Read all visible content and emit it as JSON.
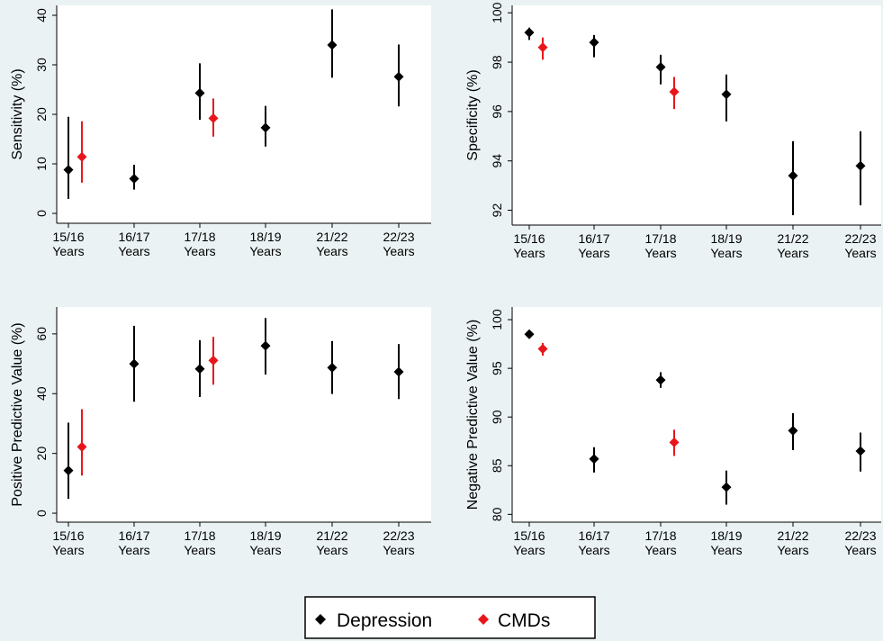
{
  "legend": {
    "items": [
      {
        "label": "Depression",
        "color": "#000000",
        "marker": "diamond"
      },
      {
        "label": "CMDs",
        "color": "#e8161b",
        "marker": "diamond"
      }
    ]
  },
  "chart_data": [
    {
      "type": "scatter",
      "error_bars": true,
      "ylabel": "Sensitivity (%)",
      "ylim": [
        -2,
        42
      ],
      "yticks": [
        0,
        10,
        20,
        30,
        40
      ],
      "categories": [
        "15/16",
        "16/17",
        "17/18",
        "18/19",
        "21/22",
        "22/23"
      ],
      "category_sublabel": "Years",
      "series": [
        {
          "name": "Depression",
          "points": [
            {
              "cat": 0,
              "y": 8.8,
              "lo": 2.9,
              "hi": 19.5
            },
            {
              "cat": 1,
              "y": 7.0,
              "lo": 4.8,
              "hi": 9.8
            },
            {
              "cat": 2,
              "y": 24.3,
              "lo": 18.9,
              "hi": 30.3
            },
            {
              "cat": 3,
              "y": 17.3,
              "lo": 13.5,
              "hi": 21.7
            },
            {
              "cat": 4,
              "y": 34.0,
              "lo": 27.4,
              "hi": 41.2
            },
            {
              "cat": 5,
              "y": 27.6,
              "lo": 21.6,
              "hi": 34.1
            }
          ]
        },
        {
          "name": "CMDs",
          "points": [
            {
              "cat": 0,
              "y": 11.4,
              "lo": 6.2,
              "hi": 18.6
            },
            {
              "cat": 2,
              "y": 19.2,
              "lo": 15.5,
              "hi": 23.2
            }
          ]
        }
      ]
    },
    {
      "type": "scatter",
      "error_bars": true,
      "ylabel": "Specificity (%)",
      "ylim": [
        91.4,
        100.3
      ],
      "yticks": [
        92,
        94,
        96,
        98,
        100
      ],
      "categories": [
        "15/16",
        "16/17",
        "17/18",
        "18/19",
        "21/22",
        "22/23"
      ],
      "category_sublabel": "Years",
      "series": [
        {
          "name": "Depression",
          "points": [
            {
              "cat": 0,
              "y": 99.2,
              "lo": 98.9,
              "hi": 99.4
            },
            {
              "cat": 1,
              "y": 98.8,
              "lo": 98.2,
              "hi": 99.1
            },
            {
              "cat": 2,
              "y": 97.8,
              "lo": 97.1,
              "hi": 98.3
            },
            {
              "cat": 3,
              "y": 96.7,
              "lo": 95.6,
              "hi": 97.5
            },
            {
              "cat": 4,
              "y": 93.4,
              "lo": 91.8,
              "hi": 94.8
            },
            {
              "cat": 5,
              "y": 93.8,
              "lo": 92.2,
              "hi": 95.2
            }
          ]
        },
        {
          "name": "CMDs",
          "points": [
            {
              "cat": 0,
              "y": 98.6,
              "lo": 98.1,
              "hi": 99.0
            },
            {
              "cat": 2,
              "y": 96.8,
              "lo": 96.1,
              "hi": 97.4
            }
          ]
        }
      ]
    },
    {
      "type": "scatter",
      "error_bars": true,
      "ylabel": "Positive Predictive Value (%)",
      "ylim": [
        -3,
        69
      ],
      "yticks": [
        0,
        20,
        40,
        60
      ],
      "categories": [
        "15/16",
        "16/17",
        "17/18",
        "18/19",
        "21/22",
        "22/23"
      ],
      "category_sublabel": "Years",
      "series": [
        {
          "name": "Depression",
          "points": [
            {
              "cat": 0,
              "y": 14.3,
              "lo": 4.8,
              "hi": 30.3
            },
            {
              "cat": 1,
              "y": 50.0,
              "lo": 37.3,
              "hi": 62.7
            },
            {
              "cat": 2,
              "y": 48.3,
              "lo": 38.9,
              "hi": 57.9
            },
            {
              "cat": 3,
              "y": 56.0,
              "lo": 46.4,
              "hi": 65.3
            },
            {
              "cat": 4,
              "y": 48.7,
              "lo": 39.9,
              "hi": 57.6
            },
            {
              "cat": 5,
              "y": 47.3,
              "lo": 38.2,
              "hi": 56.6
            }
          ]
        },
        {
          "name": "CMDs",
          "points": [
            {
              "cat": 0,
              "y": 22.2,
              "lo": 12.6,
              "hi": 34.8
            },
            {
              "cat": 2,
              "y": 51.1,
              "lo": 43.0,
              "hi": 59.0
            }
          ]
        }
      ]
    },
    {
      "type": "scatter",
      "error_bars": true,
      "ylabel": "Negative Predictive Value (%)",
      "ylim": [
        79.2,
        101.3
      ],
      "yticks": [
        80,
        85,
        90,
        95,
        100
      ],
      "categories": [
        "15/16",
        "16/17",
        "17/18",
        "18/19",
        "21/22",
        "22/23"
      ],
      "category_sublabel": "Years",
      "series": [
        {
          "name": "Depression",
          "points": [
            {
              "cat": 0,
              "y": 98.5,
              "lo": 98.2,
              "hi": 98.8
            },
            {
              "cat": 1,
              "y": 85.7,
              "lo": 84.3,
              "hi": 86.9
            },
            {
              "cat": 2,
              "y": 93.8,
              "lo": 93.0,
              "hi": 94.6
            },
            {
              "cat": 3,
              "y": 82.8,
              "lo": 81.0,
              "hi": 84.5
            },
            {
              "cat": 4,
              "y": 88.6,
              "lo": 86.6,
              "hi": 90.4
            },
            {
              "cat": 5,
              "y": 86.5,
              "lo": 84.4,
              "hi": 88.4
            }
          ]
        },
        {
          "name": "CMDs",
          "points": [
            {
              "cat": 0,
              "y": 97.0,
              "lo": 96.3,
              "hi": 97.6
            },
            {
              "cat": 2,
              "y": 87.4,
              "lo": 86.0,
              "hi": 88.7
            }
          ]
        }
      ]
    }
  ]
}
